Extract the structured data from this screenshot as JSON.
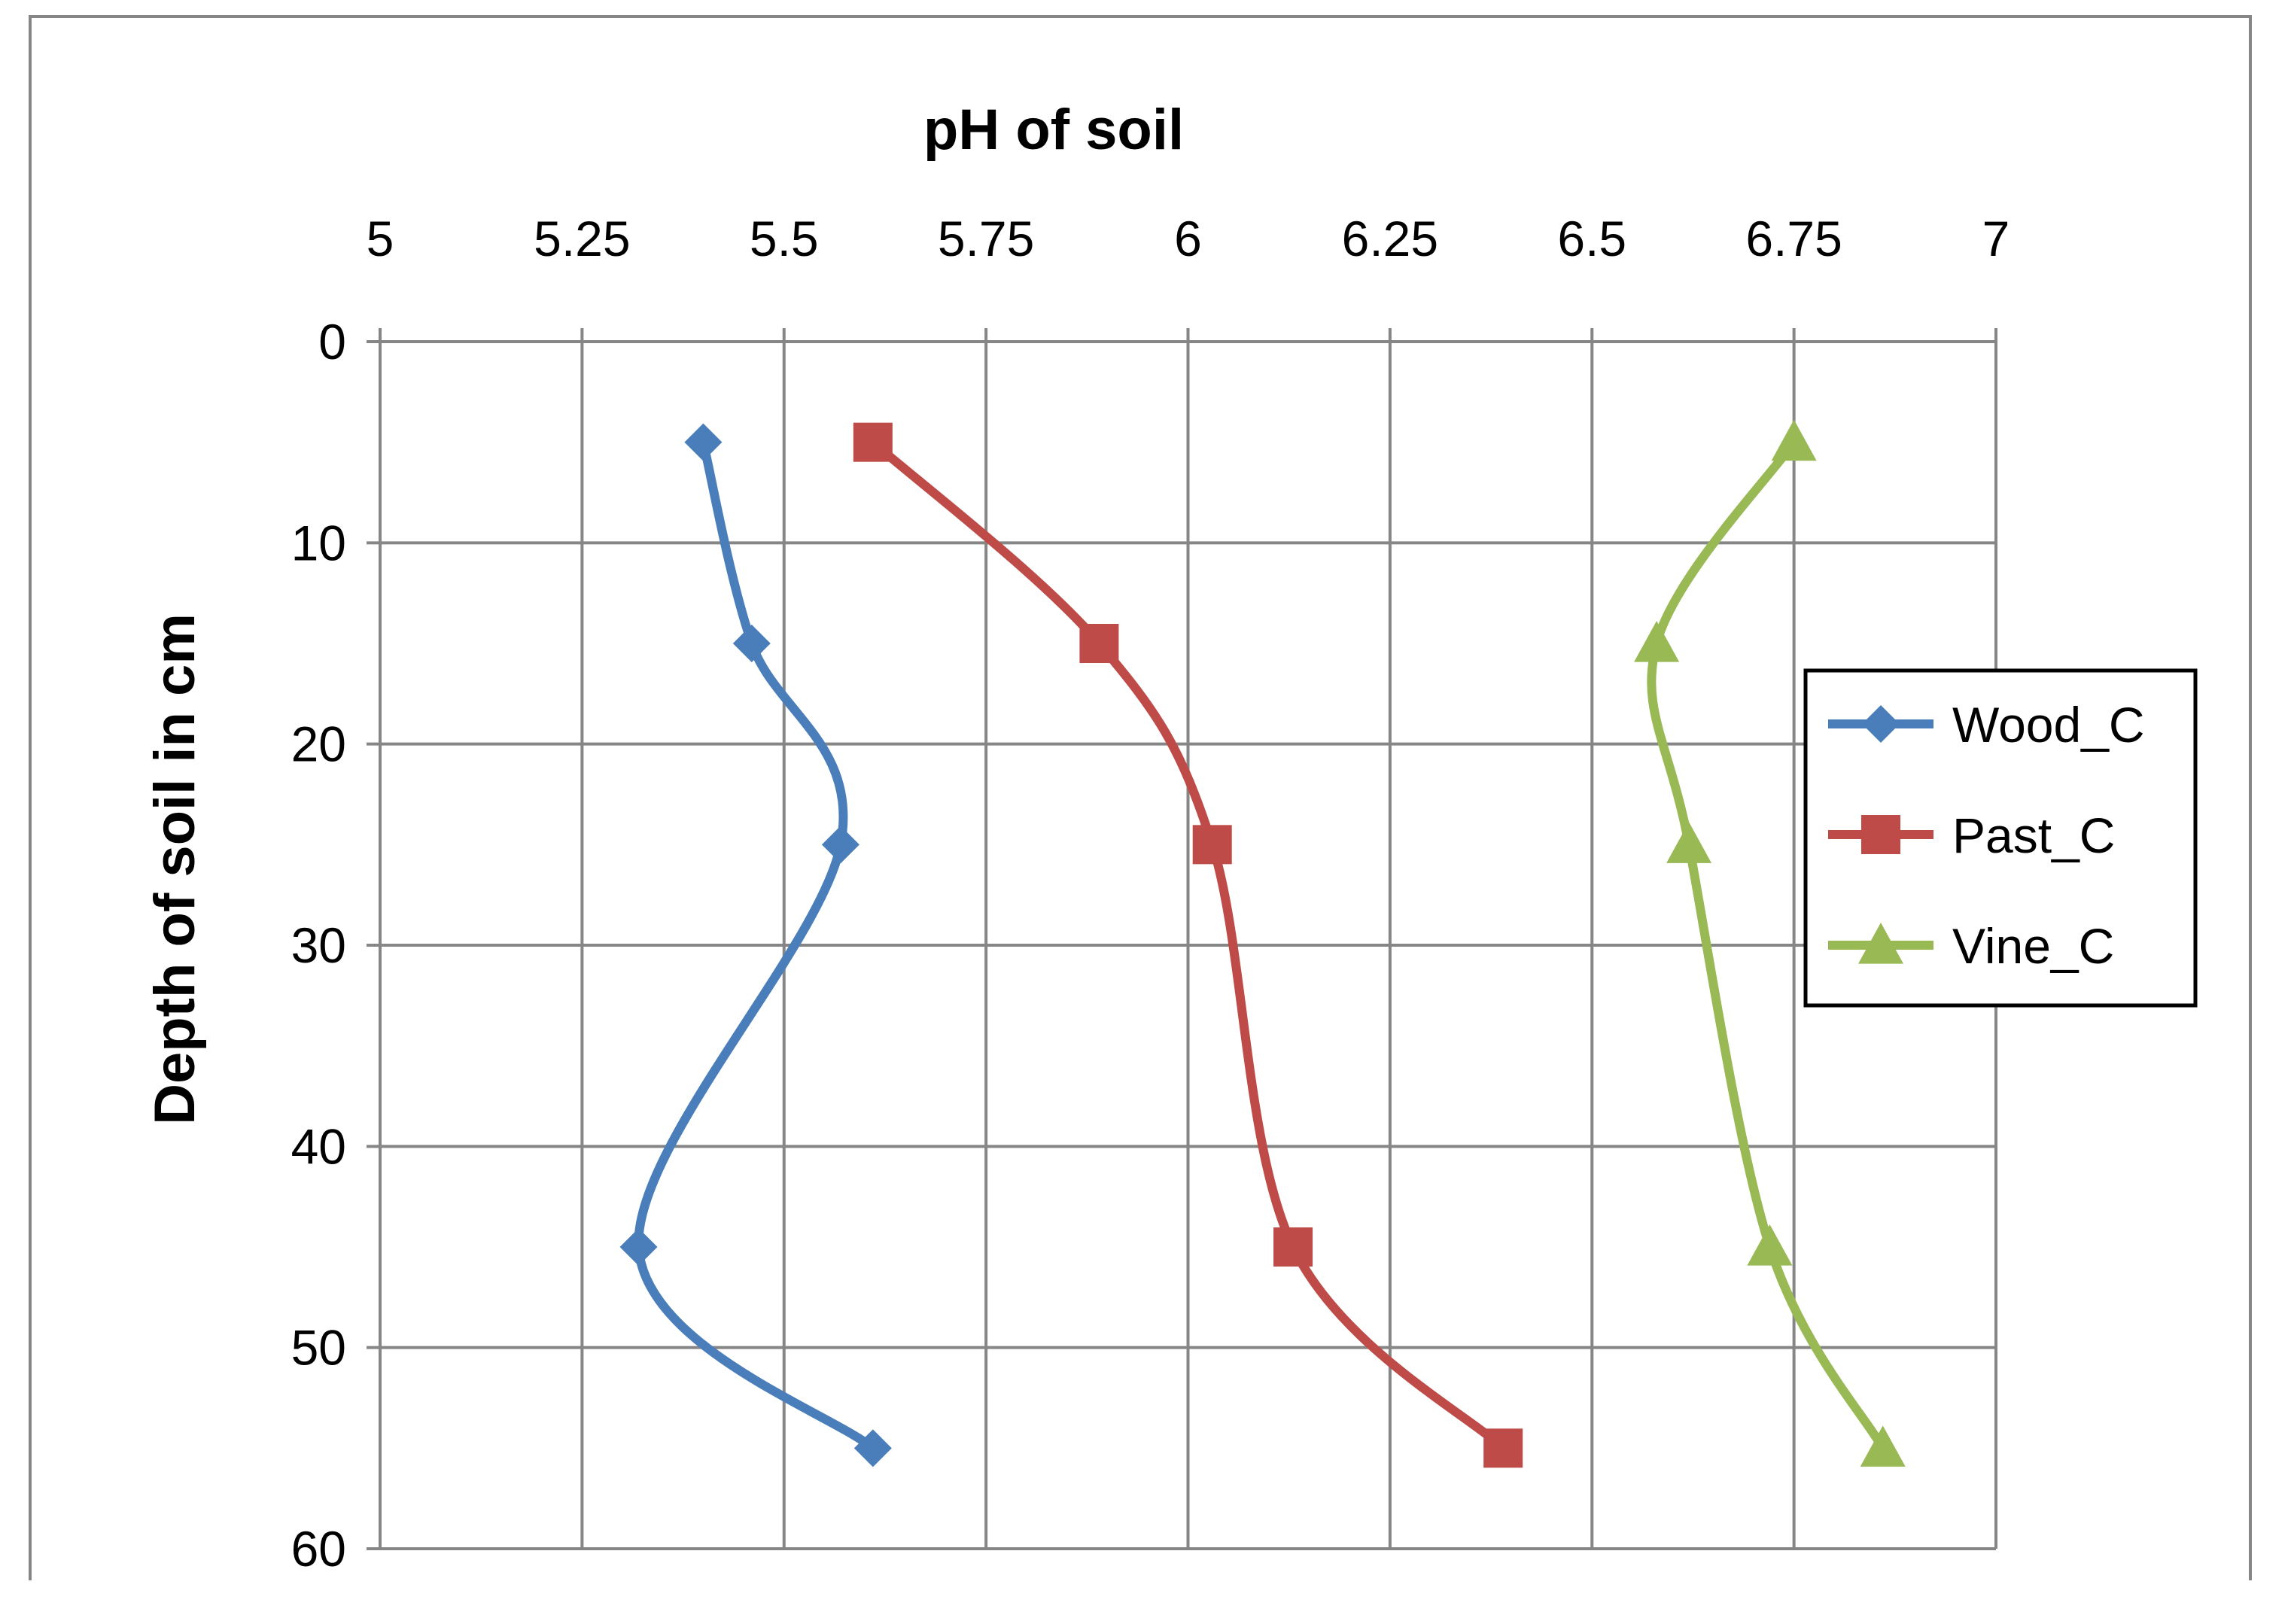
{
  "chart_data": {
    "type": "line",
    "title": "",
    "xlabel": "pH of soil",
    "ylabel": "Depth of soil in cm",
    "xlim": [
      5,
      7
    ],
    "ylim": [
      0,
      60
    ],
    "y_inverted": true,
    "x_axis_position": "top",
    "x_ticks": [
      5,
      5.25,
      5.5,
      5.75,
      6,
      6.25,
      6.5,
      6.75,
      7
    ],
    "x_tick_labels": [
      "5",
      "5.25",
      "5.5",
      "5.75",
      "6",
      "6.25",
      "6.5",
      "6.75",
      "7"
    ],
    "y_ticks": [
      0,
      10,
      20,
      30,
      40,
      50,
      60
    ],
    "y_tick_labels": [
      "0",
      "10",
      "20",
      "30",
      "40",
      "50",
      "60"
    ],
    "grid": true,
    "smooth": true,
    "legend_position": "right",
    "series": [
      {
        "name": "Wood_C",
        "color": "#4a7ebb",
        "marker": "diamond",
        "points": [
          [
            5.4,
            5
          ],
          [
            5.46,
            15
          ],
          [
            5.57,
            25
          ],
          [
            5.32,
            45
          ],
          [
            5.61,
            55
          ]
        ]
      },
      {
        "name": "Past_C",
        "color": "#be4b48",
        "marker": "square",
        "points": [
          [
            5.61,
            5
          ],
          [
            5.89,
            15
          ],
          [
            6.03,
            25
          ],
          [
            6.13,
            45
          ],
          [
            6.39,
            55
          ]
        ]
      },
      {
        "name": "Vine_C",
        "color": "#98b954",
        "marker": "triangle",
        "points": [
          [
            6.75,
            5
          ],
          [
            6.58,
            15
          ],
          [
            6.62,
            25
          ],
          [
            6.72,
            45
          ],
          [
            6.86,
            55
          ]
        ]
      }
    ]
  }
}
